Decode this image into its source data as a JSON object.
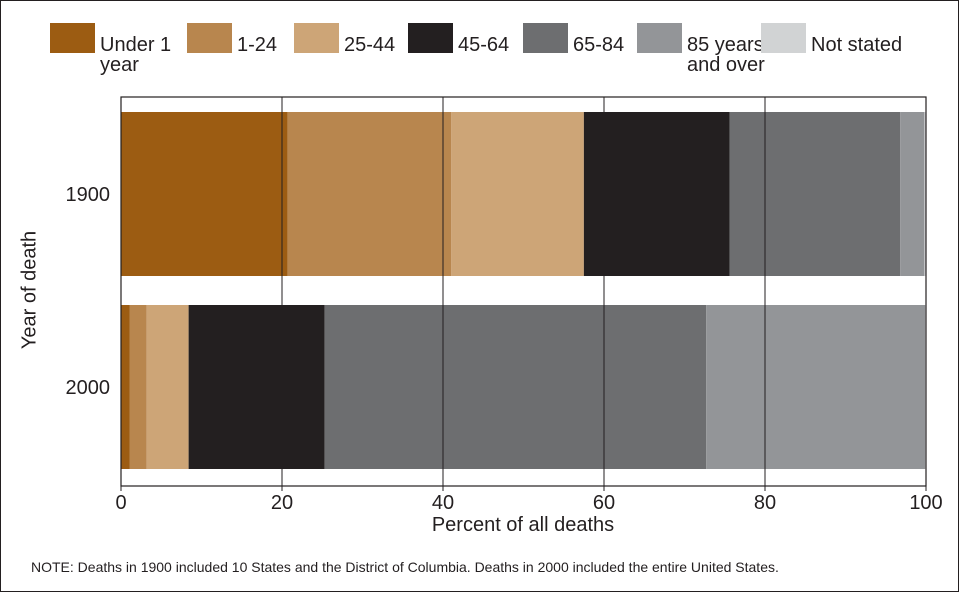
{
  "chart_data": {
    "type": "bar",
    "orientation": "horizontal",
    "stacked": true,
    "categories": [
      "1900",
      "2000"
    ],
    "series": [
      {
        "name": "Under 1\nyear",
        "color": "#9c5c12",
        "values": [
          20.7,
          1.1
        ]
      },
      {
        "name": "1-24",
        "color": "#b8864e",
        "values": [
          20.3,
          2.1
        ]
      },
      {
        "name": "25-44",
        "color": "#cda577",
        "values": [
          16.5,
          5.2
        ]
      },
      {
        "name": "45-64",
        "color": "#231f20",
        "values": [
          18.1,
          16.9
        ]
      },
      {
        "name": "65-84",
        "color": "#6d6e70",
        "values": [
          21.2,
          47.4
        ]
      },
      {
        "name": "85 years\nand over",
        "color": "#939598",
        "values": [
          3.0,
          27.2
        ]
      },
      {
        "name": "Not stated",
        "color": "#d1d3d4",
        "values": [
          0.2,
          0.1
        ]
      }
    ],
    "xlabel": "Percent of all deaths",
    "ylabel": "Year of death",
    "xlim": [
      0,
      100
    ],
    "xticks": [
      "0",
      "20",
      "40",
      "60",
      "80",
      "100"
    ],
    "grid": true,
    "legend_position": "top"
  },
  "note": "NOTE: Deaths in 1900 included 10 States and the District of Columbia. Deaths in 2000 included the entire United States."
}
